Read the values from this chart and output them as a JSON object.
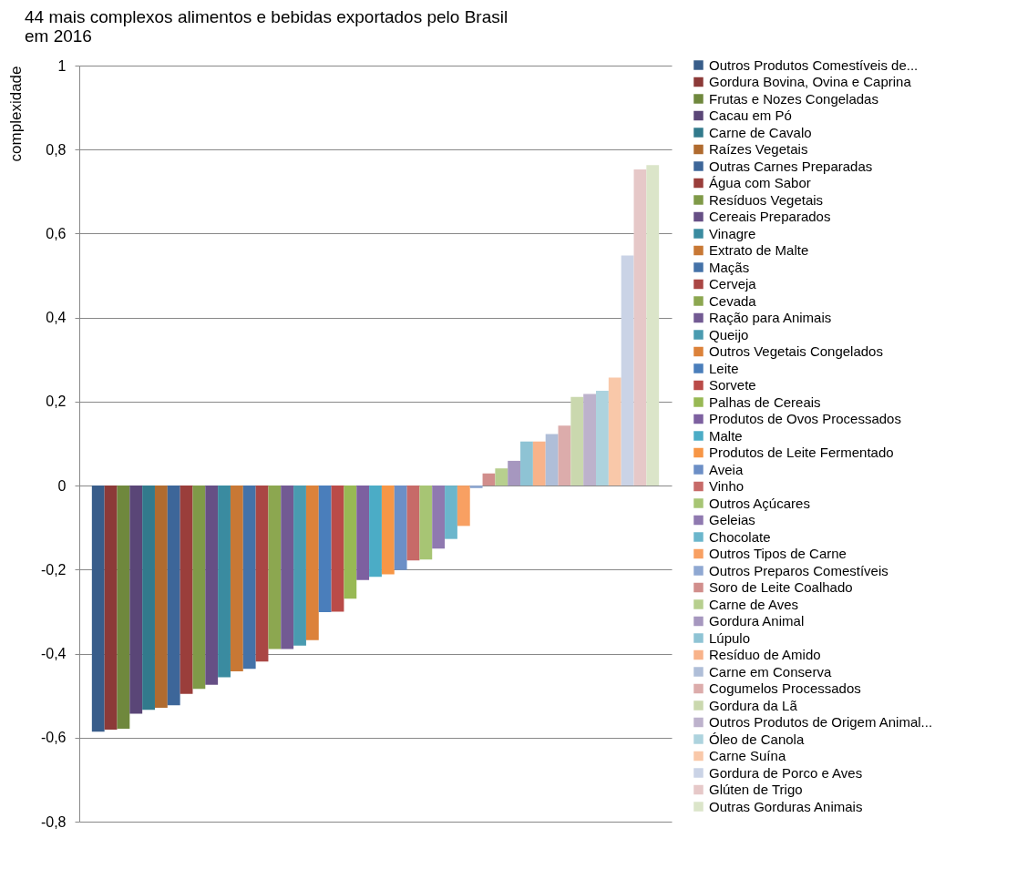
{
  "chart_data": {
    "type": "bar",
    "title": "44 mais complexos alimentos e bebidas  exportados pelo Brasil em 2016",
    "ylabel": "complexidade",
    "categories": [
      null
    ],
    "ylim": [
      -0.8,
      1
    ],
    "yticks": [
      {
        "value": -0.8,
        "label": "-0,8"
      },
      {
        "value": -0.6,
        "label": "-0,6"
      },
      {
        "value": -0.4,
        "label": "-0,4"
      },
      {
        "value": -0.2,
        "label": "-0,2"
      },
      0,
      {
        "value": 0.2,
        "label": "0,2"
      },
      {
        "value": 0.4,
        "label": "0,4"
      },
      {
        "value": 0.6,
        "label": "0,6"
      },
      {
        "value": 0.8,
        "label": "0,8"
      },
      1
    ],
    "grid": "y",
    "legend": "right",
    "series": [
      {
        "name": "Outros Produtos Comestíveis de...",
        "color": "#385d8a",
        "values": [
          -0.586
        ]
      },
      {
        "name": "Gordura Bovina, Ovina e Caprina",
        "color": "#8c3a38",
        "values": [
          -0.581
        ]
      },
      {
        "name": "Frutas e Nozes Congeladas",
        "color": "#6f883d",
        "values": [
          -0.579
        ]
      },
      {
        "name": "Cacau em Pó",
        "color": "#5a4677",
        "values": [
          -0.543
        ]
      },
      {
        "name": "Carne de Cavalo",
        "color": "#327a8c",
        "values": [
          -0.534
        ]
      },
      {
        "name": "Raízes Vegetais",
        "color": "#b06b2f",
        "values": [
          -0.529
        ]
      },
      {
        "name": "Outras Carnes Preparadas",
        "color": "#3d6699",
        "values": [
          -0.523
        ]
      },
      {
        "name": "Água com Sabor",
        "color": "#9a3e3b",
        "values": [
          -0.496
        ]
      },
      {
        "name": "Resíduos Vegetais",
        "color": "#7f9a48",
        "values": [
          -0.484
        ]
      },
      {
        "name": "Cereais Preparados",
        "color": "#664f85",
        "values": [
          -0.474
        ]
      },
      {
        "name": "Vinagre",
        "color": "#3a8ba0",
        "values": [
          -0.456
        ]
      },
      {
        "name": "Extrato de Malte",
        "color": "#c87835",
        "values": [
          -0.442
        ]
      },
      {
        "name": "Maçãs",
        "color": "#4472a8",
        "values": [
          -0.436
        ]
      },
      {
        "name": "Cerveja",
        "color": "#aa4644",
        "values": [
          -0.419
        ]
      },
      {
        "name": "Cevada",
        "color": "#8ca750",
        "values": [
          -0.389
        ]
      },
      {
        "name": "Ração para Animais",
        "color": "#725a93",
        "values": [
          -0.389
        ]
      },
      {
        "name": "Queijo",
        "color": "#4a9bb0",
        "values": [
          -0.381
        ]
      },
      {
        "name": "Outros Vegetais Congelados",
        "color": "#dc823a",
        "values": [
          -0.368
        ]
      },
      {
        "name": "Leite",
        "color": "#4a7ebb",
        "values": [
          -0.301
        ]
      },
      {
        "name": "Sorvete",
        "color": "#ba4b48",
        "values": [
          -0.3
        ]
      },
      {
        "name": "Palhas de Cereais",
        "color": "#98b954",
        "values": [
          -0.269
        ]
      },
      {
        "name": "Produtos de Ovos Processados",
        "color": "#7d60a0",
        "values": [
          -0.225
        ]
      },
      {
        "name": "Malte",
        "color": "#4bacc6",
        "values": [
          -0.217
        ]
      },
      {
        "name": "Produtos de Leite Fermentado",
        "color": "#f79646",
        "values": [
          -0.211
        ]
      },
      {
        "name": "Aveia",
        "color": "#6c8fc6",
        "values": [
          -0.201
        ]
      },
      {
        "name": "Vinho",
        "color": "#c76a68",
        "values": [
          -0.178
        ]
      },
      {
        "name": "Outros Açúcares",
        "color": "#a7c574",
        "values": [
          -0.176
        ]
      },
      {
        "name": "Geleias",
        "color": "#8f79b0",
        "values": [
          -0.15
        ]
      },
      {
        "name": "Chocolate",
        "color": "#6bb6cc",
        "values": [
          -0.127
        ]
      },
      {
        "name": "Outros Tipos de Carne",
        "color": "#f8a062",
        "values": [
          -0.096
        ]
      },
      {
        "name": "Outros Preparos Comestíveis",
        "color": "#8fa8d2",
        "values": [
          -0.006
        ]
      },
      {
        "name": "Soro de Leite Coalhado",
        "color": "#d18e8c",
        "values": [
          0.029
        ]
      },
      {
        "name": "Carne de Aves",
        "color": "#b7cf8e",
        "values": [
          0.041
        ]
      },
      {
        "name": "Gordura Animal",
        "color": "#a697bf",
        "values": [
          0.059
        ]
      },
      {
        "name": "Lúpulo",
        "color": "#8ec3d4",
        "values": [
          0.105
        ]
      },
      {
        "name": "Resíduo de Amido",
        "color": "#f8b38a",
        "values": [
          0.105
        ]
      },
      {
        "name": "Carne em Conserva",
        "color": "#afbed8",
        "values": [
          0.123
        ]
      },
      {
        "name": "Cogumelos Processados",
        "color": "#dcacab",
        "values": [
          0.143
        ]
      },
      {
        "name": "Gordura da Lã",
        "color": "#cad8ae",
        "values": [
          0.211
        ]
      },
      {
        "name": "Outros Produtos de Origem Animal...",
        "color": "#bdb2cc",
        "values": [
          0.218
        ]
      },
      {
        "name": "Óleo de Canola",
        "color": "#add3de",
        "values": [
          0.226
        ]
      },
      {
        "name": "Carne Suína",
        "color": "#f9c8a9",
        "values": [
          0.257
        ]
      },
      {
        "name": "Gordura de Porco e Aves",
        "color": "#cad3e6",
        "values": [
          0.548
        ]
      },
      {
        "name": "Glúten de Trigo",
        "color": "#e6c8c8",
        "values": [
          0.753
        ]
      },
      {
        "name": "Outras Gorduras Animais",
        "color": "#dbe5c9",
        "values": [
          0.763
        ]
      }
    ]
  }
}
